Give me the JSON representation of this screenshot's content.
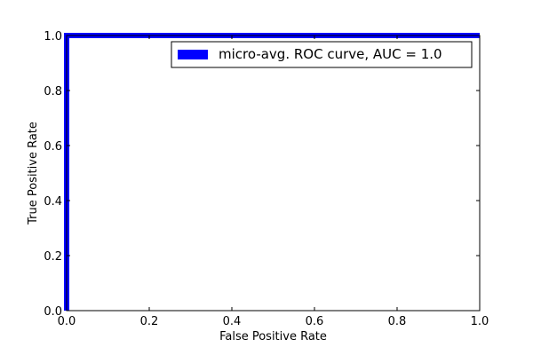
{
  "chart_data": {
    "type": "line",
    "title": "",
    "xlabel": "False Positive Rate",
    "ylabel": "True Positive Rate",
    "xlim": [
      0.0,
      1.0
    ],
    "ylim": [
      0.0,
      1.0
    ],
    "xticks": [
      0.0,
      0.2,
      0.4,
      0.6,
      0.8,
      1.0
    ],
    "yticks": [
      0.0,
      0.2,
      0.4,
      0.6,
      0.8,
      1.0
    ],
    "xtick_labels": [
      "0.0",
      "0.2",
      "0.4",
      "0.6",
      "0.8",
      "1.0"
    ],
    "ytick_labels": [
      "0.0",
      "0.2",
      "0.4",
      "0.6",
      "0.8",
      "1.0"
    ],
    "grid": false,
    "legend_position": "top-right",
    "series": [
      {
        "name": "micro-avg. ROC curve, AUC = 1.0",
        "color": "#0000ff",
        "x": [
          0.0,
          0.0,
          0.0,
          1.0
        ],
        "y": [
          0.0,
          0.02,
          1.0,
          1.0
        ]
      }
    ]
  }
}
